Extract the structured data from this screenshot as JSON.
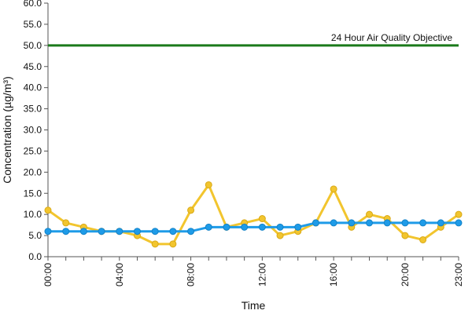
{
  "chart_data": {
    "type": "line",
    "title": "",
    "xlabel": "Time",
    "ylabel": "Concentration (µg/m³)",
    "ylim": [
      0,
      60
    ],
    "y_ticks": [
      "0.0",
      "5.0",
      "10.0",
      "15.0",
      "20.0",
      "25.0",
      "30.0",
      "35.0",
      "40.0",
      "45.0",
      "50.0",
      "55.0",
      "60.0"
    ],
    "x": [
      "00:00",
      "01:00",
      "02:00",
      "03:00",
      "04:00",
      "05:00",
      "06:00",
      "07:00",
      "08:00",
      "09:00",
      "10:00",
      "11:00",
      "12:00",
      "13:00",
      "14:00",
      "15:00",
      "16:00",
      "17:00",
      "18:00",
      "19:00",
      "20:00",
      "21:00",
      "22:00",
      "23:00"
    ],
    "x_tick_labels": [
      "00:00",
      "04:00",
      "08:00",
      "12:00",
      "16:00",
      "20:00",
      "23:00"
    ],
    "grid": false,
    "legend": "none",
    "series": [
      {
        "color": "#f2c52e",
        "values": [
          11,
          8,
          7,
          6,
          6,
          5,
          3,
          3,
          11,
          17,
          7,
          8,
          9,
          5,
          6,
          8,
          16,
          7,
          10,
          9,
          5,
          4,
          7,
          10
        ]
      },
      {
        "color": "#1e9be8",
        "values": [
          6,
          6,
          6,
          6,
          6,
          6,
          6,
          6,
          6,
          7,
          7,
          7,
          7,
          7,
          7,
          8,
          8,
          8,
          8,
          8,
          8,
          8,
          8,
          8
        ]
      }
    ],
    "reference_line": {
      "value": 50,
      "label": "24 Hour Air Quality Objective",
      "color": "#1a7a1a"
    }
  }
}
